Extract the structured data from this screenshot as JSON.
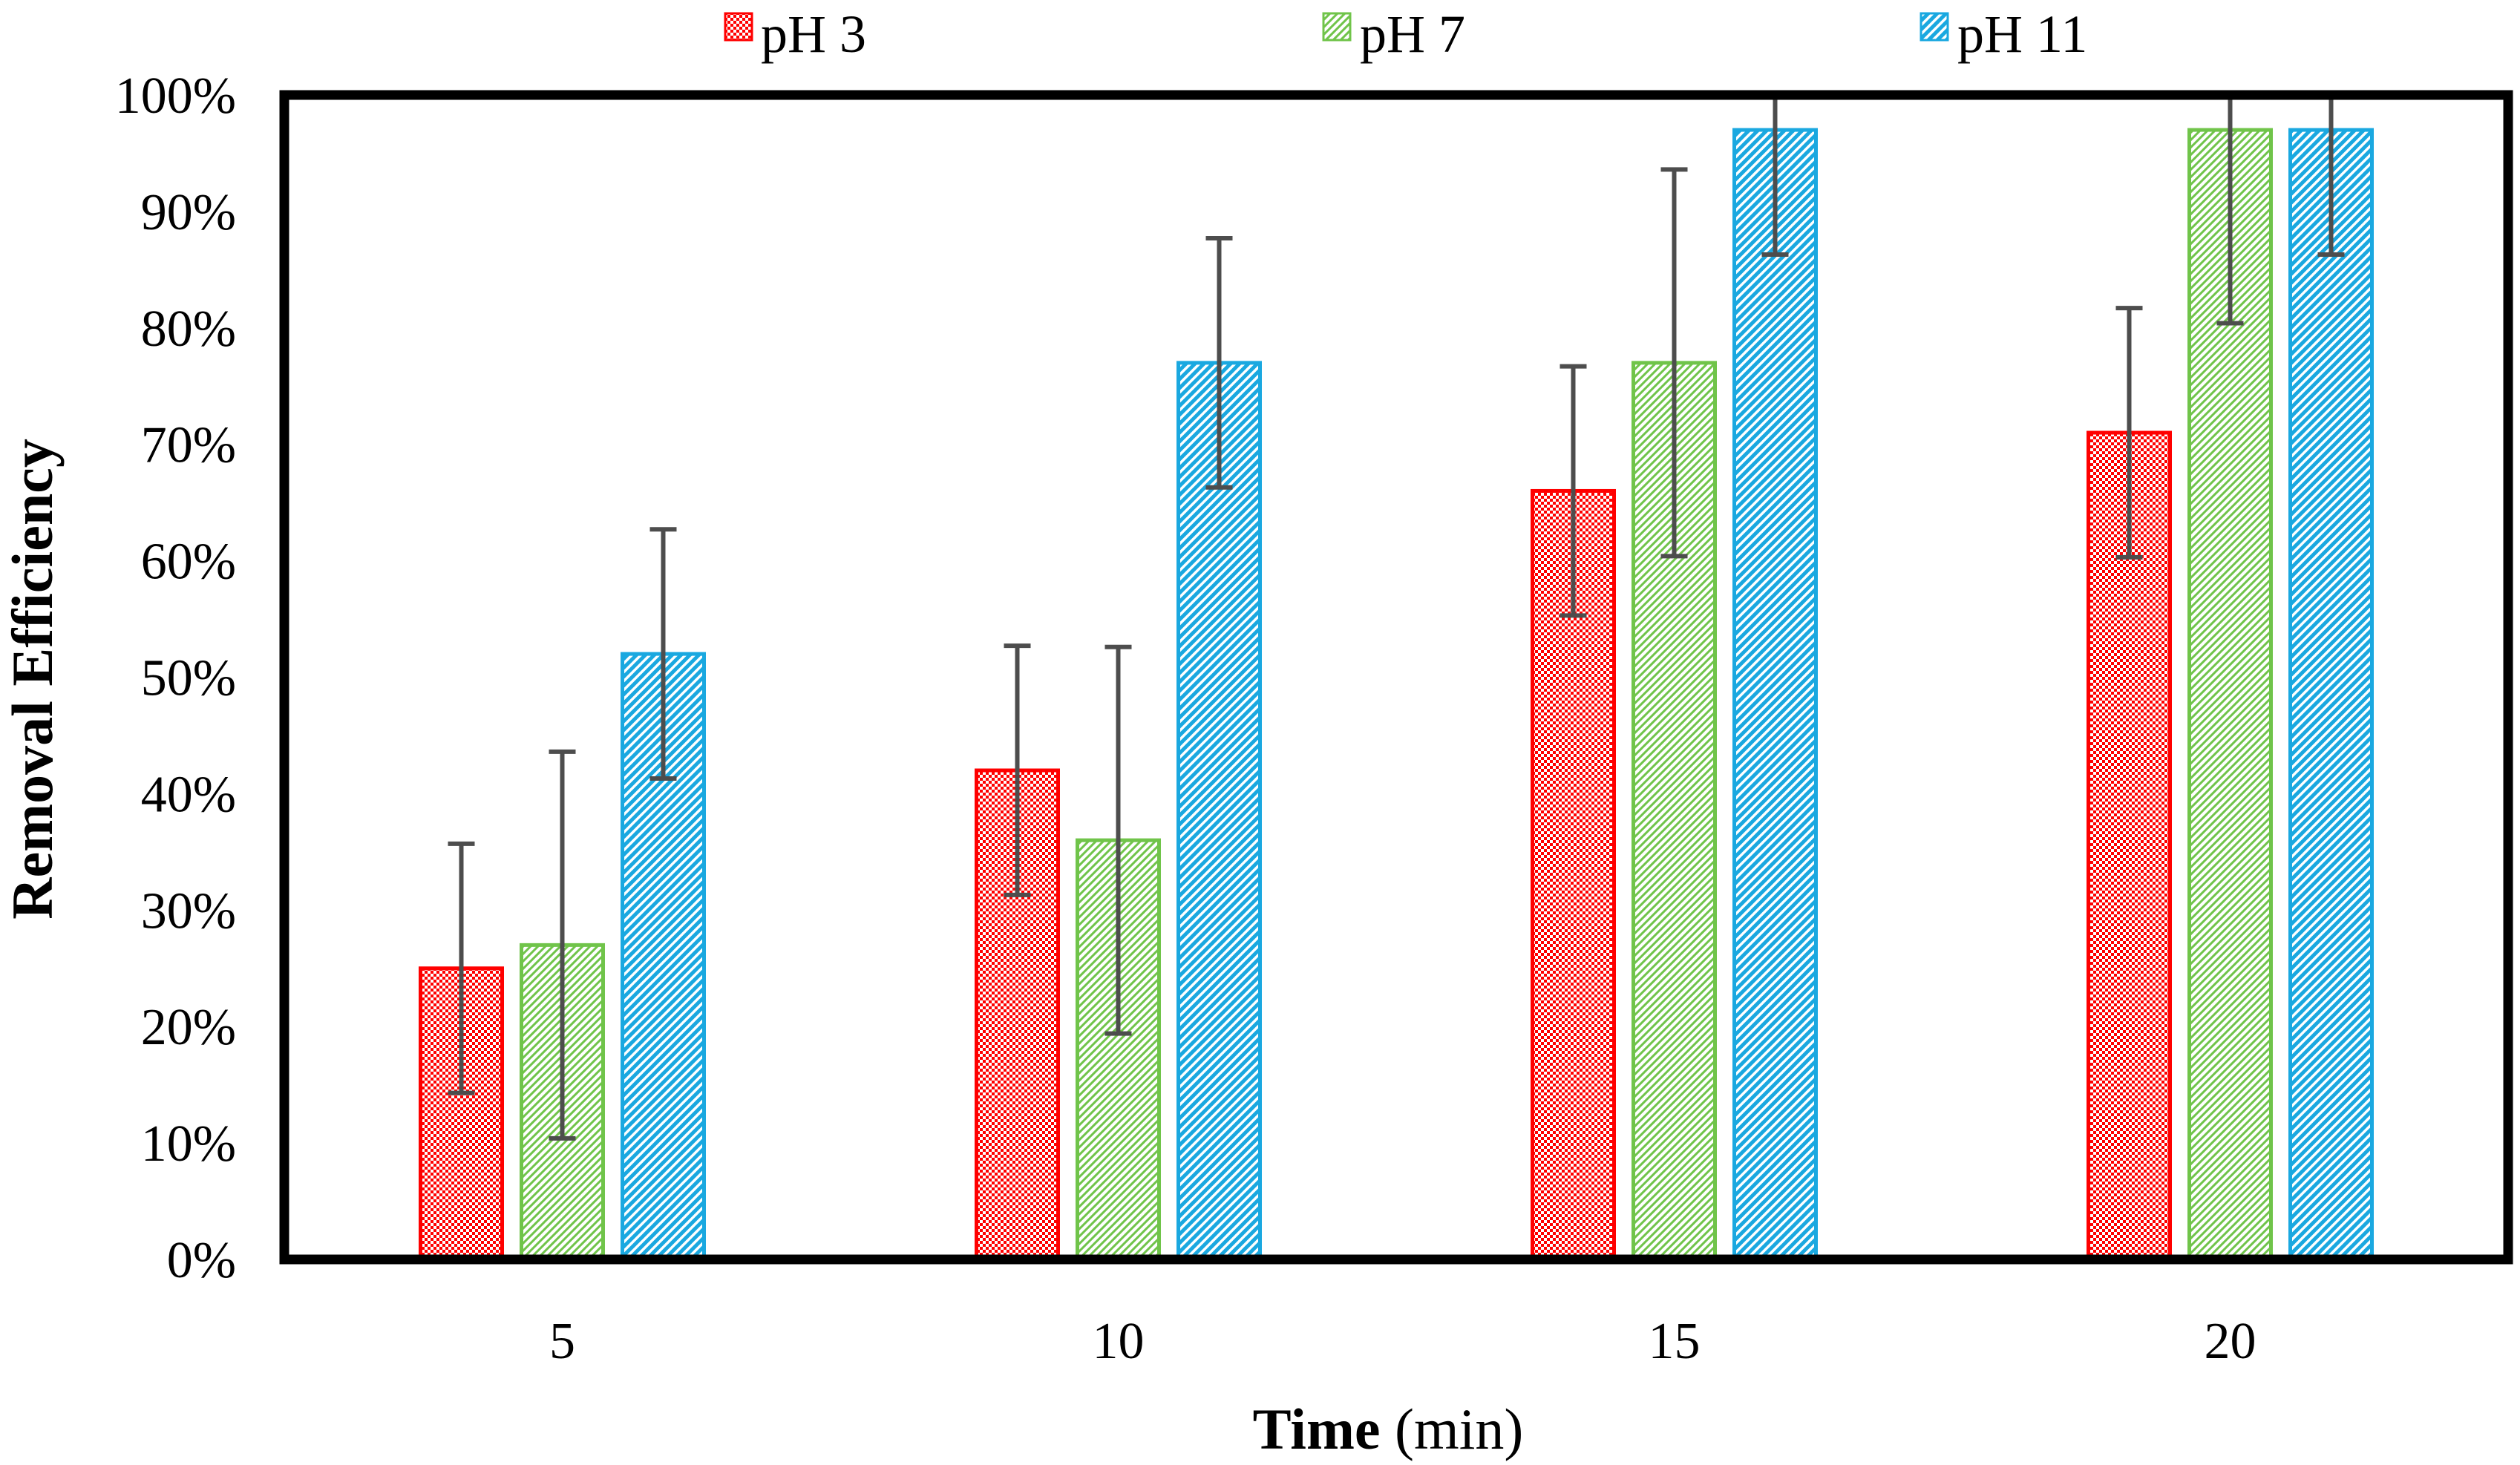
{
  "chart_data": {
    "type": "bar",
    "title": "",
    "categories": [
      "5",
      "10",
      "15",
      "20"
    ],
    "series": [
      {
        "name": "pH 3",
        "values": [
          25,
          42,
          66,
          71
        ],
        "errors": [
          10.7,
          10.7,
          10.7,
          10.7
        ],
        "color": "#ff0000",
        "pattern": "checker"
      },
      {
        "name": "pH 7",
        "values": [
          27,
          36,
          77,
          97
        ],
        "errors": [
          16.6,
          16.6,
          16.6,
          16.6
        ],
        "color": "#70c44a",
        "pattern": "diagonal-dense"
      },
      {
        "name": "pH 11",
        "values": [
          52,
          77,
          97,
          97
        ],
        "errors": [
          10.7,
          10.7,
          10.7,
          10.7
        ],
        "color": "#1aa8e0",
        "pattern": "diagonal-wide"
      }
    ],
    "yticks": [
      "0%",
      "10%",
      "20%",
      "30%",
      "40%",
      "50%",
      "60%",
      "70%",
      "80%",
      "90%",
      "100%"
    ],
    "ylim": [
      0,
      100
    ],
    "xlabel_bold": "Time",
    "xlabel_rest": " (min)",
    "ylabel": "Removal Efficiency",
    "grid": false,
    "legend_position": "top",
    "errorbar_color": "#4d4d4d"
  }
}
